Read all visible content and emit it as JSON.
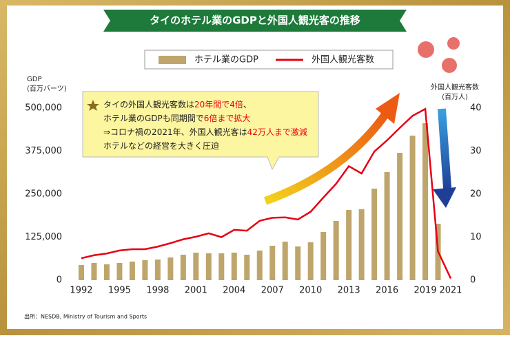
{
  "chart_data": {
    "type": "bar",
    "title": "タイのホテル業のGDPと外国人観光客の推移",
    "y_axis_label": [
      "GDP",
      "(百万バーツ)"
    ],
    "y2_axis_label": [
      "外国人観光客数",
      "(百万人)"
    ],
    "source": "出所：NESDB, Ministry of Tourism and Sports",
    "x": [
      1992,
      1993,
      1994,
      1995,
      1996,
      1997,
      1998,
      1999,
      2000,
      2001,
      2002,
      2003,
      2004,
      2005,
      2006,
      2007,
      2008,
      2009,
      2010,
      2011,
      2012,
      2013,
      2014,
      2015,
      2016,
      2017,
      2018,
      2019,
      2020,
      2021
    ],
    "xlim": [
      1991,
      2022
    ],
    "xticks": [
      1992,
      1995,
      1998,
      2001,
      2004,
      2007,
      2010,
      2013,
      2016,
      2019,
      2021
    ],
    "ylim": [
      0,
      500000
    ],
    "yticks": [
      0,
      {
        "value": 125000,
        "label": "125,000"
      },
      {
        "value": 250000,
        "label": "250,000"
      },
      {
        "value": 375000,
        "label": "375,000"
      },
      {
        "value": 500000,
        "label": "500,000"
      }
    ],
    "y2lim": [
      0,
      40
    ],
    "y2ticks": [
      0,
      10,
      20,
      30,
      40
    ],
    "grid": false,
    "series": [
      {
        "name": "ホテル業のGDP",
        "type": "bar",
        "color": "#bea56b",
        "values": [
          44000,
          50000,
          46000,
          50000,
          54000,
          58000,
          60000,
          66000,
          74000,
          80000,
          78000,
          78000,
          80000,
          74000,
          86000,
          100000,
          112000,
          98000,
          110000,
          140000,
          172000,
          204000,
          206000,
          266000,
          314000,
          370000,
          420000,
          456000,
          164000,
          null
        ]
      },
      {
        "name": "外国人観光客数",
        "type": "line",
        "axis": "y2",
        "color": "#e60012",
        "values": [
          5.1,
          5.8,
          6.2,
          6.9,
          7.2,
          7.2,
          7.8,
          8.6,
          9.5,
          10.1,
          10.9,
          10.0,
          11.7,
          11.5,
          13.8,
          14.5,
          14.6,
          14.1,
          15.9,
          19.2,
          22.4,
          26.5,
          24.8,
          29.9,
          32.5,
          35.4,
          38.2,
          39.8,
          6.7,
          0.4
        ]
      }
    ],
    "annotation": [
      [
        {
          "text": "タイの外国人観光客数は"
        },
        {
          "text": "20年間で4倍",
          "color": "#e60012"
        },
        {
          "text": "、"
        }
      ],
      [
        {
          "text": "ホテル業のGDPも同期間で"
        },
        {
          "text": "6倍まで拡大",
          "color": "#e60012"
        }
      ],
      [
        {
          "text": "⇒コロナ禍の2021年、外国人観光客は"
        },
        {
          "text": "42万人まで激減",
          "color": "#e60012"
        }
      ],
      [
        {
          "text": "ホテルなどの経営を大きく圧迫"
        }
      ]
    ]
  }
}
